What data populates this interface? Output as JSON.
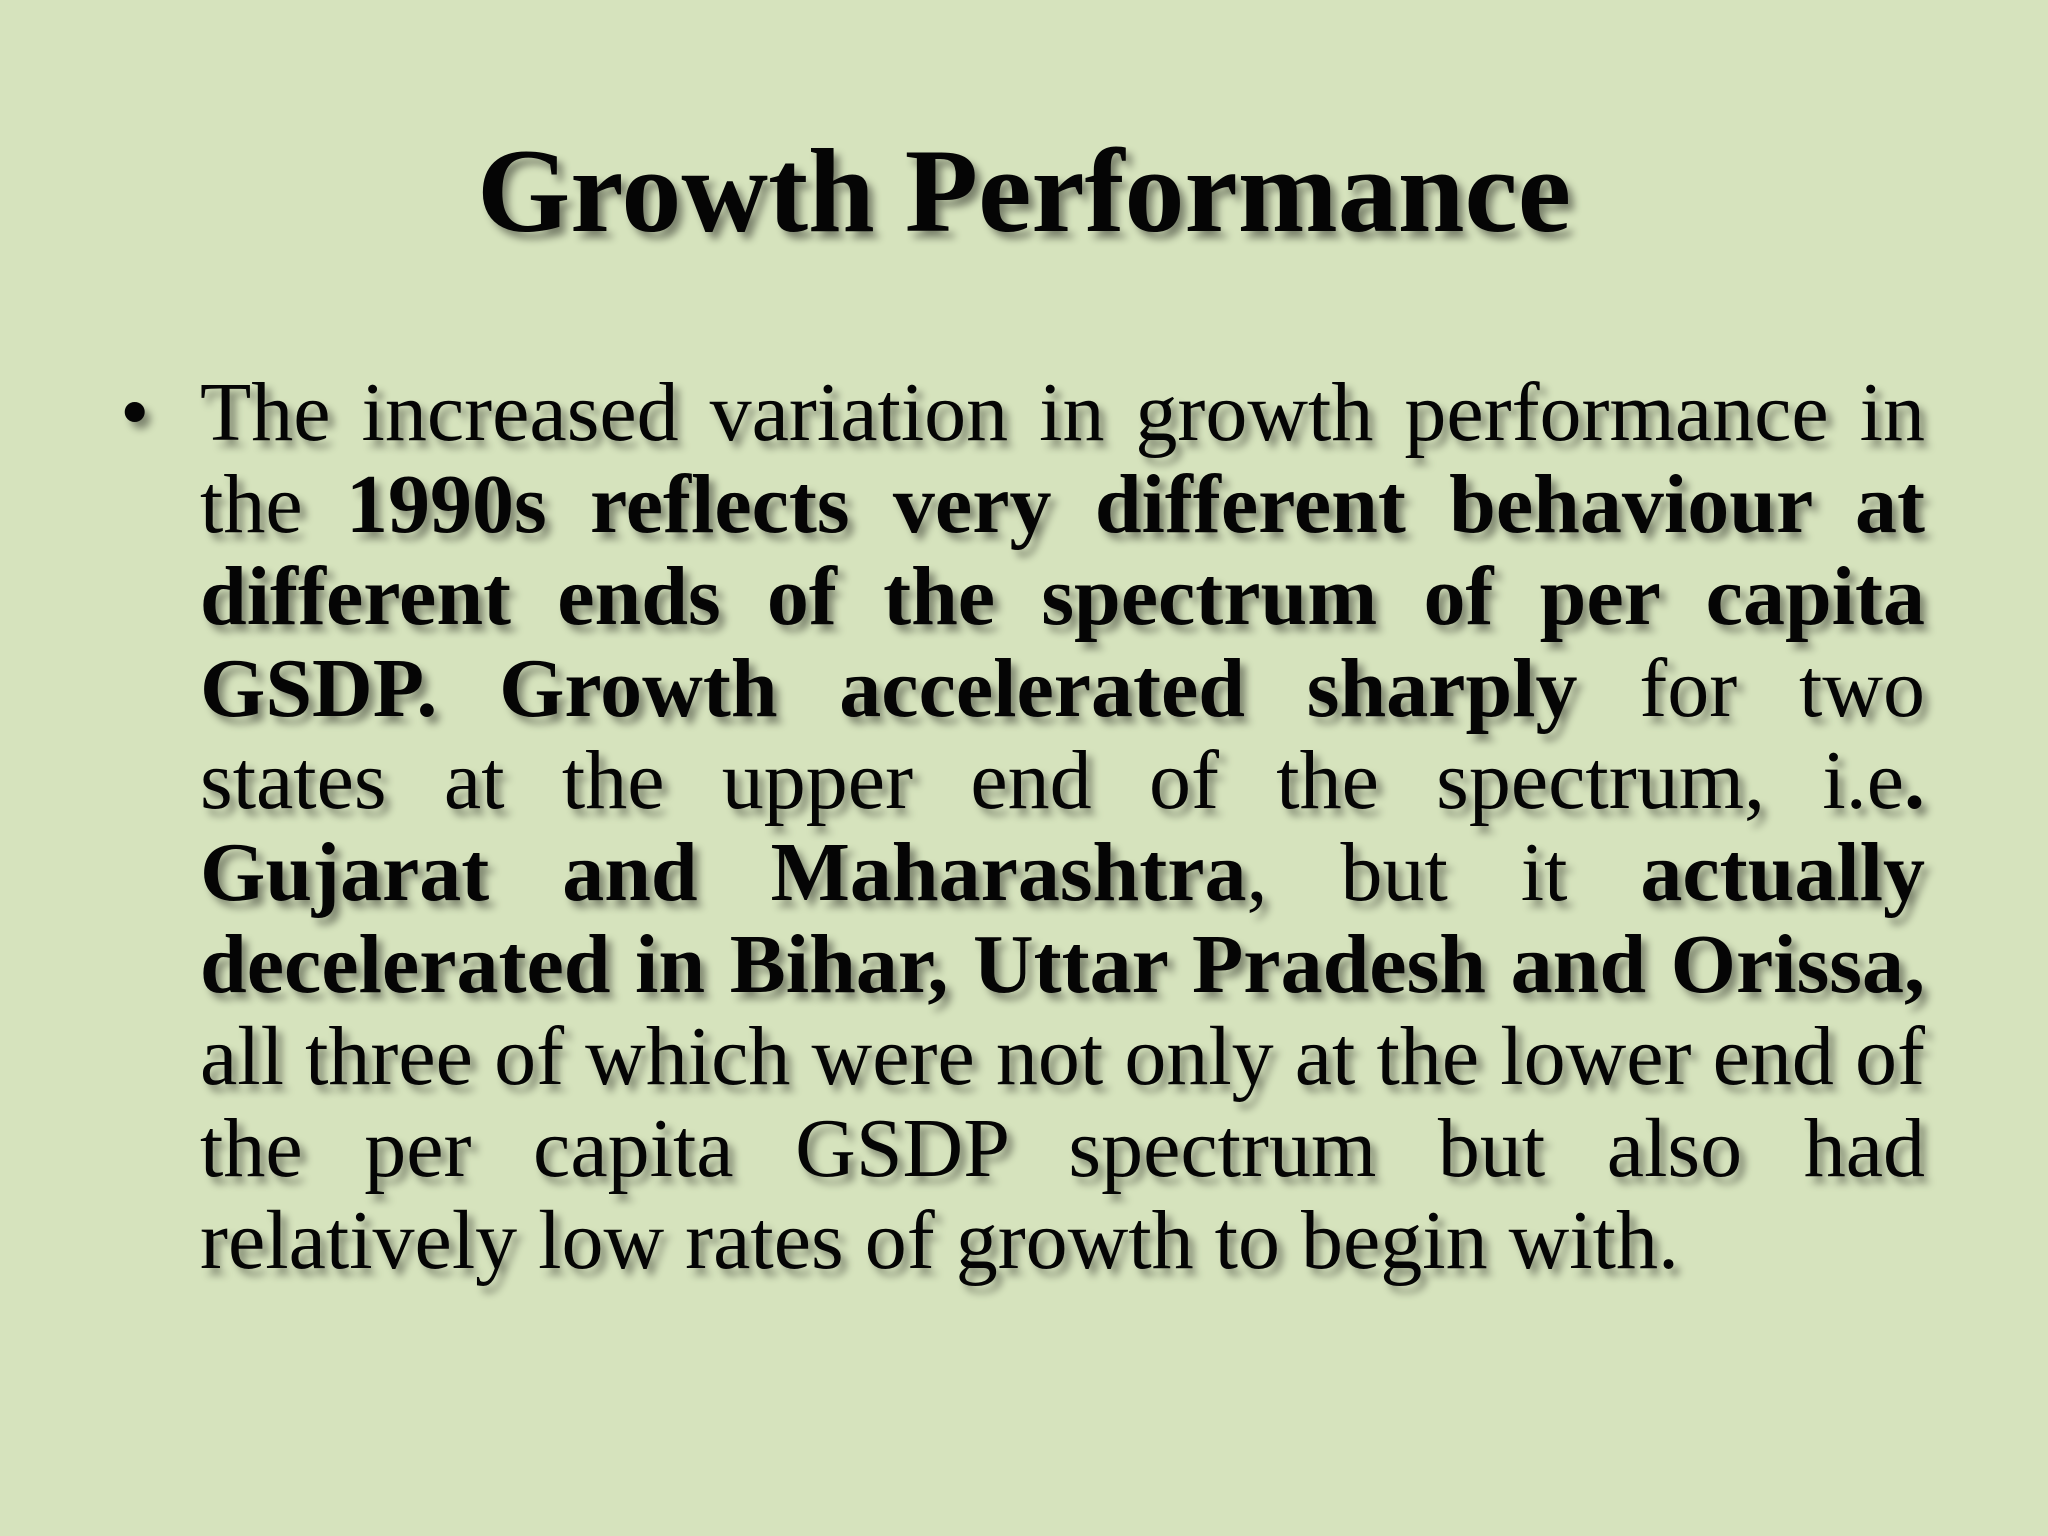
{
  "slide": {
    "title": "Growth Performance",
    "bullet_symbol": "•",
    "bullets": [
      {
        "segments": [
          {
            "text": "The increased variation in growth performance in the ",
            "bold": false
          },
          {
            "text": "1990s reflects very different behaviour at different ends of the spectrum of per capita GSDP. Growth accelerated sharply",
            "bold": true
          },
          {
            "text": " for two states at the upper end of the spectrum, i.e",
            "bold": false
          },
          {
            "text": ". Gujarat and Maharashtra",
            "bold": true
          },
          {
            "text": ", but it ",
            "bold": false
          },
          {
            "text": "actually decelerated in Bihar, Uttar Pradesh and Orissa,",
            "bold": true
          },
          {
            "text": " all three of which were not only at the lower end of the per capita GSDP spectrum but also had relatively low rates of growth to begin with.",
            "bold": false
          }
        ]
      }
    ]
  },
  "colors": {
    "background": "#d6e3bd",
    "text": "#050505"
  }
}
